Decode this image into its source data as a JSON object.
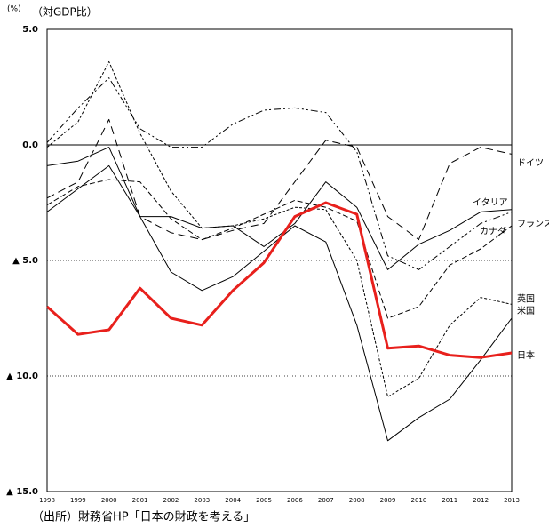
{
  "chart_data": {
    "type": "line",
    "unit": "(%)",
    "subtitle": "（対GDP比）",
    "source": "（出所）財務省HP「日本の財政を考える」",
    "categories": [
      "1998",
      "1999",
      "2000",
      "2001",
      "2002",
      "2003",
      "2004",
      "2005",
      "2006",
      "2007",
      "2008",
      "2009",
      "2010",
      "2011",
      "2012",
      "2013"
    ],
    "ylim": [
      -15,
      5
    ],
    "yticks": [
      {
        "value": 5,
        "label": "5.0"
      },
      {
        "value": 0,
        "label": "0.0"
      },
      {
        "value": -5,
        "label": "▲ 5.0"
      },
      {
        "value": -10,
        "label": "▲ 10.0"
      },
      {
        "value": -15,
        "label": "▲ 15.0"
      }
    ],
    "series": [
      {
        "name": "ドイツ",
        "color": "#000000",
        "dash": "9,5",
        "values": [
          -2.3,
          -1.6,
          1.1,
          -3.1,
          -3.8,
          -4.1,
          -3.7,
          -3.4,
          -1.6,
          0.2,
          -0.1,
          -3.1,
          -4.1,
          -0.8,
          -0.1,
          -0.4
        ]
      },
      {
        "name": "イタリア",
        "color": "#000000",
        "dash": "",
        "values": [
          -2.9,
          -1.9,
          -0.9,
          -3.1,
          -3.1,
          -3.6,
          -3.5,
          -4.4,
          -3.4,
          -1.6,
          -2.7,
          -5.4,
          -4.3,
          -3.7,
          -2.9,
          -2.8
        ]
      },
      {
        "name": "フランス",
        "color": "#000000",
        "dash": "6,3",
        "values": [
          -2.6,
          -1.8,
          -1.5,
          -1.6,
          -3.2,
          -4.1,
          -3.6,
          -3.0,
          -2.4,
          -2.7,
          -3.3,
          -7.5,
          -7.0,
          -5.2,
          -4.5,
          -3.5
        ]
      },
      {
        "name": "カナダ",
        "color": "#000000",
        "dash": "8,3,2,3,2,3",
        "values": [
          0.1,
          1.6,
          2.9,
          0.7,
          -0.1,
          -0.1,
          0.9,
          1.5,
          1.6,
          1.4,
          -0.3,
          -4.8,
          -5.4,
          -4.4,
          -3.4,
          -2.9
        ]
      },
      {
        "name": "英国",
        "color": "#000000",
        "dash": "3,2",
        "values": [
          -0.1,
          1.0,
          3.6,
          0.5,
          -2.0,
          -3.6,
          -3.5,
          -3.2,
          -2.7,
          -2.8,
          -5.0,
          -10.9,
          -10.1,
          -7.8,
          -6.6,
          -6.9
        ]
      },
      {
        "name": "米国",
        "color": "#000000",
        "dash": "",
        "values": [
          -0.9,
          -0.7,
          -0.1,
          -3.1,
          -5.5,
          -6.3,
          -5.7,
          -4.6,
          -3.5,
          -4.2,
          -7.8,
          -12.8,
          -11.8,
          -11.0,
          -9.3,
          -7.5
        ]
      },
      {
        "name": "日本",
        "color": "#e8201c",
        "dash": "",
        "width": 3,
        "values": [
          -7.0,
          -8.2,
          -8.0,
          -6.2,
          -7.5,
          -7.8,
          -6.3,
          -5.1,
          -3.1,
          -2.5,
          -3.0,
          -8.8,
          -8.7,
          -9.1,
          -9.2,
          -9.0
        ]
      }
    ]
  }
}
